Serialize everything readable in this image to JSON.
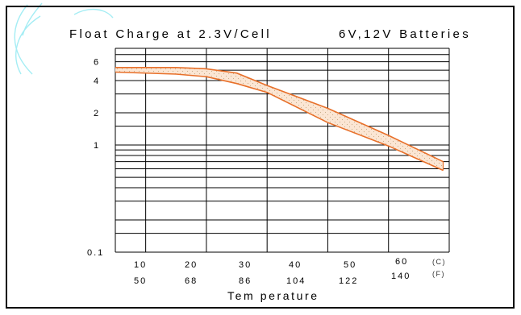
{
  "colors": {
    "accent": "#e8702a",
    "watermark": "#7fe6f0",
    "band_fill": "#fbe6d4",
    "dots": "#c9b08a",
    "border": "#000000"
  },
  "chart_data": {
    "type": "area",
    "title": "Float Charge at 2.3V/Cell",
    "subtitle": "6V,12V Batteries",
    "xlabel": "Tem perature",
    "ylabel": "",
    "x_scale": "linear",
    "y_scale": "log",
    "xlim": [
      5,
      60
    ],
    "ylim": [
      0.1,
      8
    ],
    "grid": true,
    "x_ticks": [
      {
        "c": "10",
        "f": "50"
      },
      {
        "c": "20",
        "f": "68"
      },
      {
        "c": "30",
        "f": "86"
      },
      {
        "c": "40",
        "f": "104"
      },
      {
        "c": "50",
        "f": "122"
      },
      {
        "c": "60",
        "f": "140"
      }
    ],
    "x_unit_labels": {
      "celsius": "(C)",
      "fahrenheit": "(F)"
    },
    "y_tick_labels": [
      "6",
      "4",
      "2",
      "1",
      "0.1"
    ],
    "series": [
      {
        "role": "upper",
        "points": [
          [
            5,
            5.3
          ],
          [
            15,
            5.3
          ],
          [
            20,
            5.15
          ],
          [
            25,
            4.7
          ],
          [
            30,
            3.6
          ],
          [
            40,
            2.2
          ],
          [
            50,
            1.23
          ],
          [
            59,
            0.7
          ]
        ]
      },
      {
        "role": "lower",
        "points": [
          [
            5,
            4.8
          ],
          [
            15,
            4.6
          ],
          [
            20,
            4.35
          ],
          [
            25,
            3.75
          ],
          [
            30,
            3.1
          ],
          [
            40,
            1.62
          ],
          [
            50,
            0.98
          ],
          [
            59,
            0.58
          ]
        ]
      }
    ]
  }
}
